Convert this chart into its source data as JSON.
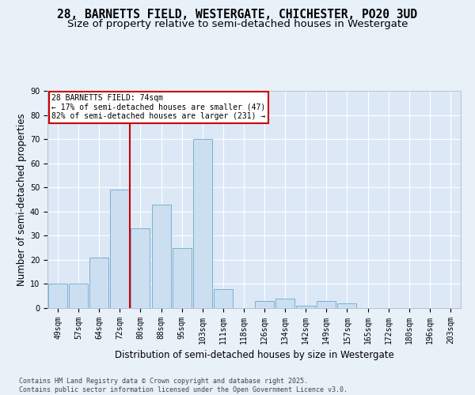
{
  "title_line1": "28, BARNETTS FIELD, WESTERGATE, CHICHESTER, PO20 3UD",
  "title_line2": "Size of property relative to semi-detached houses in Westergate",
  "xlabel": "Distribution of semi-detached houses by size in Westergate",
  "ylabel": "Number of semi-detached properties",
  "categories": [
    "49sqm",
    "57sqm",
    "64sqm",
    "72sqm",
    "80sqm",
    "88sqm",
    "95sqm",
    "103sqm",
    "111sqm",
    "118sqm",
    "126sqm",
    "134sqm",
    "142sqm",
    "149sqm",
    "157sqm",
    "165sqm",
    "172sqm",
    "180sqm",
    "196sqm",
    "203sqm"
  ],
  "values": [
    10,
    10,
    21,
    49,
    33,
    43,
    25,
    70,
    8,
    0,
    3,
    4,
    1,
    3,
    2,
    0,
    0,
    0,
    0,
    0
  ],
  "bar_color": "#ccdff0",
  "bar_edge_color": "#7ab0d4",
  "vline_x_index": 3.5,
  "vline_color": "#cc0000",
  "annotation_text": "28 BARNETTS FIELD: 74sqm\n← 17% of semi-detached houses are smaller (47)\n82% of semi-detached houses are larger (231) →",
  "annotation_box_color": "#ffffff",
  "annotation_box_edge_color": "#cc0000",
  "ylim": [
    0,
    90
  ],
  "yticks": [
    0,
    10,
    20,
    30,
    40,
    50,
    60,
    70,
    80,
    90
  ],
  "background_color": "#e8f0f8",
  "plot_bg_color": "#dce8f5",
  "footer_text": "Contains HM Land Registry data © Crown copyright and database right 2025.\nContains public sector information licensed under the Open Government Licence v3.0.",
  "title_fontsize": 10.5,
  "subtitle_fontsize": 9.5,
  "axis_label_fontsize": 8.5,
  "tick_fontsize": 7,
  "footer_fontsize": 6
}
